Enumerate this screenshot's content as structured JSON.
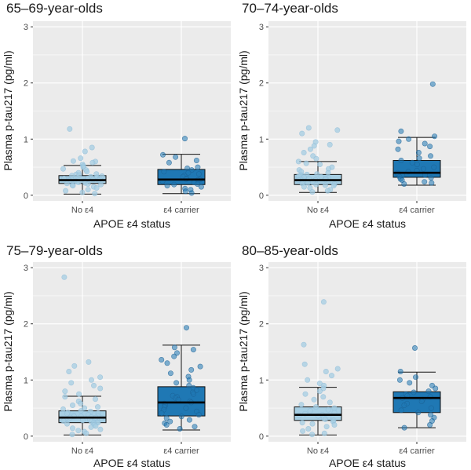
{
  "chart_data": {
    "type": "boxplot",
    "xlabel": "APOE ε4 status",
    "ylabel": "Plasma p-tau217 (pg/ml)",
    "ylim": [
      -0.1,
      3.1
    ],
    "yticks": [
      0,
      1,
      2,
      3
    ],
    "categories": [
      "No ε4",
      "ε4 carrier"
    ],
    "colors": {
      "no_e4": "#a6cee3",
      "carrier": "#1f78b4",
      "panel_bg": "#ebebeb",
      "grid": "#ffffff"
    },
    "panels": [
      {
        "title": "65–69-year-olds",
        "boxes": [
          {
            "category": "No ε4",
            "whisker_low": 0.02,
            "q1": 0.21,
            "median": 0.27,
            "q3": 0.35,
            "whisker_high": 0.53,
            "points": [
              1.18,
              0.85,
              0.78,
              0.66,
              0.61,
              0.6,
              0.58,
              0.55,
              0.52,
              0.5,
              0.47,
              0.45,
              0.42,
              0.4,
              0.38,
              0.37,
              0.36,
              0.35,
              0.34,
              0.33,
              0.32,
              0.31,
              0.3,
              0.3,
              0.29,
              0.28,
              0.28,
              0.27,
              0.27,
              0.26,
              0.25,
              0.25,
              0.24,
              0.23,
              0.22,
              0.21,
              0.2,
              0.19,
              0.18,
              0.17,
              0.15,
              0.13,
              0.1,
              0.08,
              0.05,
              0.03
            ]
          },
          {
            "category": "ε4 carrier",
            "whisker_low": 0.03,
            "q1": 0.19,
            "median": 0.28,
            "q3": 0.46,
            "whisker_high": 0.73,
            "points": [
              1.01,
              0.72,
              0.68,
              0.62,
              0.58,
              0.5,
              0.48,
              0.45,
              0.42,
              0.4,
              0.38,
              0.35,
              0.33,
              0.3,
              0.29,
              0.28,
              0.27,
              0.25,
              0.23,
              0.2,
              0.19,
              0.17,
              0.15,
              0.12,
              0.1,
              0.07,
              0.04
            ]
          }
        ]
      },
      {
        "title": "70–74-year-olds",
        "boxes": [
          {
            "category": "No ε4",
            "whisker_low": 0.05,
            "q1": 0.19,
            "median": 0.27,
            "q3": 0.37,
            "whisker_high": 0.6,
            "points": [
              1.2,
              1.16,
              1.1,
              0.95,
              0.9,
              0.88,
              0.82,
              0.76,
              0.7,
              0.65,
              0.6,
              0.57,
              0.55,
              0.5,
              0.47,
              0.45,
              0.42,
              0.4,
              0.38,
              0.37,
              0.36,
              0.35,
              0.34,
              0.33,
              0.32,
              0.31,
              0.3,
              0.29,
              0.28,
              0.28,
              0.27,
              0.27,
              0.26,
              0.25,
              0.24,
              0.23,
              0.22,
              0.21,
              0.2,
              0.19,
              0.18,
              0.17,
              0.15,
              0.13,
              0.1,
              0.08,
              0.06
            ]
          },
          {
            "category": "ε4 carrier",
            "whisker_low": 0.18,
            "q1": 0.32,
            "median": 0.4,
            "q3": 0.62,
            "whisker_high": 1.03,
            "points": [
              1.98,
              1.14,
              1.05,
              1.0,
              0.96,
              0.92,
              0.87,
              0.82,
              0.76,
              0.7,
              0.66,
              0.62,
              0.58,
              0.55,
              0.5,
              0.47,
              0.44,
              0.42,
              0.4,
              0.38,
              0.36,
              0.35,
              0.33,
              0.31,
              0.29,
              0.27,
              0.24,
              0.22,
              0.2
            ]
          }
        ]
      },
      {
        "title": "75–79-year-olds",
        "boxes": [
          {
            "category": "No ε4",
            "whisker_low": 0.02,
            "q1": 0.24,
            "median": 0.33,
            "q3": 0.45,
            "whisker_high": 0.71,
            "points": [
              2.83,
              1.32,
              1.25,
              1.15,
              1.05,
              1.0,
              0.95,
              0.9,
              0.85,
              0.8,
              0.75,
              0.7,
              0.66,
              0.62,
              0.58,
              0.55,
              0.52,
              0.5,
              0.48,
              0.45,
              0.44,
              0.42,
              0.41,
              0.4,
              0.38,
              0.37,
              0.36,
              0.35,
              0.35,
              0.34,
              0.33,
              0.33,
              0.32,
              0.31,
              0.3,
              0.29,
              0.28,
              0.27,
              0.26,
              0.25,
              0.24,
              0.23,
              0.22,
              0.2,
              0.18,
              0.16,
              0.14,
              0.12,
              0.1,
              0.08,
              0.05,
              0.03
            ]
          },
          {
            "category": "ε4 carrier",
            "whisker_low": 0.11,
            "q1": 0.36,
            "median": 0.6,
            "q3": 0.88,
            "whisker_high": 1.62,
            "points": [
              1.93,
              1.58,
              1.54,
              1.48,
              1.42,
              1.36,
              1.3,
              1.24,
              1.18,
              1.12,
              1.06,
              1.0,
              0.95,
              0.9,
              0.86,
              0.82,
              0.78,
              0.75,
              0.72,
              0.7,
              0.68,
              0.65,
              0.62,
              0.6,
              0.58,
              0.55,
              0.52,
              0.5,
              0.47,
              0.44,
              0.41,
              0.38,
              0.35,
              0.32,
              0.29,
              0.26,
              0.23,
              0.2,
              0.17,
              0.13
            ]
          }
        ]
      },
      {
        "title": "80–85-year-olds",
        "boxes": [
          {
            "category": "No ε4",
            "whisker_low": 0.02,
            "q1": 0.28,
            "median": 0.38,
            "q3": 0.52,
            "whisker_high": 0.87,
            "points": [
              2.39,
              1.63,
              1.28,
              1.2,
              1.15,
              1.08,
              1.0,
              0.94,
              0.9,
              0.85,
              0.8,
              0.75,
              0.7,
              0.65,
              0.6,
              0.56,
              0.52,
              0.5,
              0.47,
              0.45,
              0.42,
              0.4,
              0.38,
              0.37,
              0.36,
              0.34,
              0.32,
              0.3,
              0.28,
              0.26,
              0.24,
              0.22,
              0.2,
              0.17,
              0.13,
              0.09,
              0.05,
              0.03
            ]
          },
          {
            "category": "ε4 carrier",
            "whisker_low": 0.15,
            "q1": 0.42,
            "median": 0.68,
            "q3": 0.79,
            "whisker_high": 1.14,
            "points": [
              1.57,
              1.15,
              1.05,
              1.0,
              0.95,
              0.9,
              0.85,
              0.8,
              0.78,
              0.75,
              0.72,
              0.7,
              0.68,
              0.65,
              0.62,
              0.58,
              0.55,
              0.5,
              0.46,
              0.42,
              0.38,
              0.33,
              0.27,
              0.2,
              0.15
            ]
          }
        ]
      }
    ]
  }
}
